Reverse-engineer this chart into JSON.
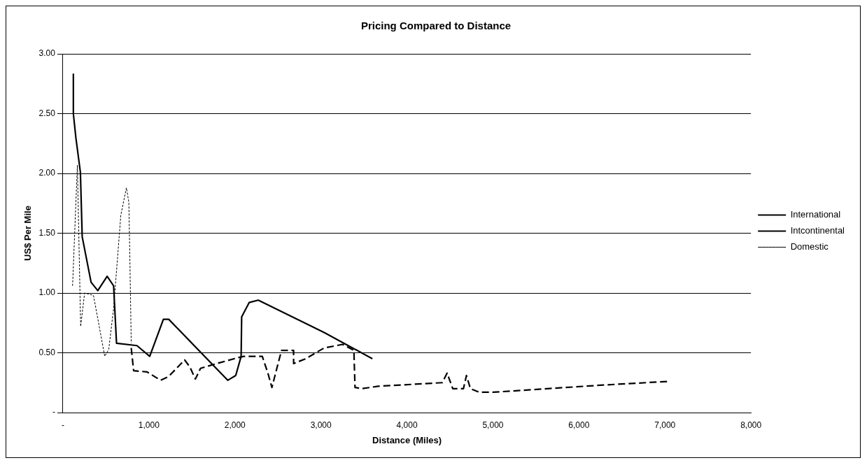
{
  "chart_data": {
    "type": "line",
    "title": "Pricing Compared to Distance",
    "xlabel": "Distance (Miles)",
    "ylabel": "US$ Per Mile",
    "xlim": [
      0,
      8000
    ],
    "xticks": [
      {
        "value": 0,
        "label": "-"
      },
      {
        "value": 1000,
        "label": "1,000"
      },
      {
        "value": 2000,
        "label": "2,000"
      },
      {
        "value": 3000,
        "label": "3,000"
      },
      {
        "value": 4000,
        "label": "4,000"
      },
      {
        "value": 5000,
        "label": "5,000"
      },
      {
        "value": 6000,
        "label": "6,000"
      },
      {
        "value": 7000,
        "label": "7,000"
      },
      {
        "value": 8000,
        "label": "8,000"
      }
    ],
    "ylim": [
      0,
      3
    ],
    "yticks": [
      {
        "value": 0,
        "label": "-"
      },
      {
        "value": 0.5,
        "label": "0.50"
      },
      {
        "value": 1,
        "label": "1.00"
      },
      {
        "value": 1.5,
        "label": "1.50"
      },
      {
        "value": 2,
        "label": "2.00"
      },
      {
        "value": 2.5,
        "label": "2.50"
      },
      {
        "value": 3,
        "label": "3.00"
      }
    ],
    "grid": "y",
    "legend": "right",
    "marker": "none",
    "series": [
      {
        "name": "International",
        "color": "#000000",
        "line_style": "solid",
        "x": [
          121,
          121,
          150,
          203,
          224,
          327,
          405,
          514,
          589,
          623,
          860,
          1009,
          1168,
          1230,
          1916,
          2009,
          2072,
          2078,
          2165,
          2271,
          3037,
          3598
        ],
        "values": [
          2.83,
          2.5,
          2.3,
          2.01,
          1.47,
          1.09,
          1.02,
          1.14,
          1.06,
          0.58,
          0.56,
          0.47,
          0.78,
          0.78,
          0.27,
          0.31,
          0.47,
          0.8,
          0.92,
          0.94,
          0.67,
          0.45
        ]
      },
      {
        "name": "Intcontinental",
        "color": "#000000",
        "line_style": "dashed",
        "x": [
          794,
          822,
          978,
          1134,
          1227,
          1321,
          1415,
          1477,
          1540,
          1600,
          1790,
          2040,
          2103,
          2318,
          2383,
          2430,
          2505,
          2542,
          2682,
          2682,
          2822,
          3037,
          3252,
          3383,
          3396,
          3477,
          3664,
          4411,
          4467,
          4533,
          4657,
          4692,
          4738,
          4841,
          5000,
          6280,
          7028
        ],
        "values": [
          0.54,
          0.35,
          0.34,
          0.27,
          0.3,
          0.37,
          0.44,
          0.38,
          0.28,
          0.37,
          0.41,
          0.46,
          0.47,
          0.47,
          0.33,
          0.21,
          0.42,
          0.52,
          0.52,
          0.41,
          0.45,
          0.54,
          0.57,
          0.52,
          0.21,
          0.2,
          0.22,
          0.25,
          0.33,
          0.2,
          0.2,
          0.31,
          0.2,
          0.17,
          0.17,
          0.23,
          0.26
        ]
      },
      {
        "name": "Domestic",
        "color": "#000000",
        "line_style": "dotted",
        "x": [
          112,
          168,
          206,
          252,
          355,
          486,
          533,
          589,
          673,
          738,
          766,
          776,
          794
        ],
        "values": [
          1.06,
          2.07,
          0.72,
          1.0,
          0.98,
          0.47,
          0.53,
          0.87,
          1.65,
          1.88,
          1.76,
          1.38,
          0.58
        ]
      }
    ]
  }
}
